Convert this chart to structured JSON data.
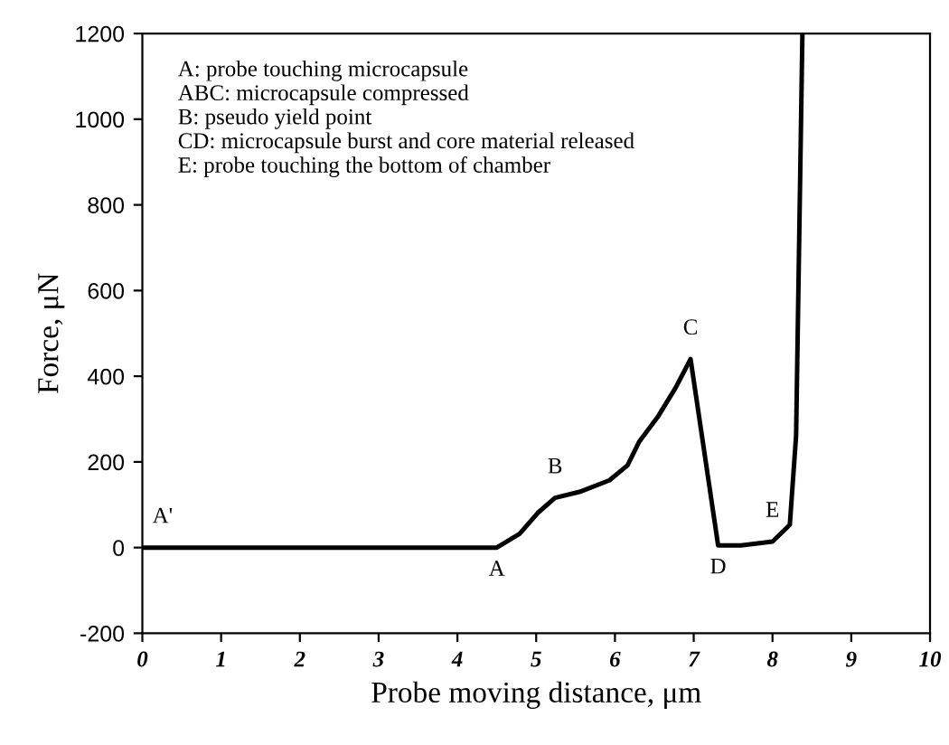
{
  "chart_data": {
    "type": "line",
    "xlabel": "Probe moving distance, μm",
    "ylabel": "Force, μN",
    "xlim": [
      0,
      10
    ],
    "ylim": [
      -200,
      1200
    ],
    "xticks": [
      0,
      1,
      2,
      3,
      4,
      5,
      6,
      7,
      8,
      9,
      10
    ],
    "yticks": [
      -200,
      0,
      200,
      400,
      600,
      800,
      1000,
      1200
    ],
    "grid": false,
    "marker": "none",
    "line_style": "solid",
    "series": [
      {
        "color": "#000000",
        "x": [
          0,
          1,
          2,
          3,
          4,
          4.5,
          4.79,
          5.02,
          5.24,
          5.55,
          5.93,
          6.16,
          6.31,
          6.54,
          6.77,
          6.96,
          7.31,
          7.6,
          8.0,
          8.22,
          8.3,
          8.38
        ],
        "values": [
          0,
          0,
          0,
          0,
          0,
          0,
          32,
          81,
          116,
          130,
          157,
          192,
          248,
          304,
          373,
          440,
          5,
          5,
          14,
          53,
          262,
          1200
        ]
      }
    ],
    "annotations": [
      "A: probe touching microcapsule",
      "ABC: microcapsule compressed",
      "B: pseudo yield point",
      "CD: microcapsule burst and core material released",
      "E: probe touching the bottom of chamber",
      {
        "text": "A'",
        "x": 0,
        "y": 0
      },
      {
        "text": "A",
        "x": 4.5,
        "y": 0
      },
      {
        "text": "B",
        "x": 5.24,
        "y": 116
      },
      {
        "text": "C",
        "x": 6.96,
        "y": 440
      },
      {
        "text": "D",
        "x": 7.31,
        "y": 5
      },
      {
        "text": "E",
        "x": 8.0,
        "y": 14
      }
    ]
  }
}
